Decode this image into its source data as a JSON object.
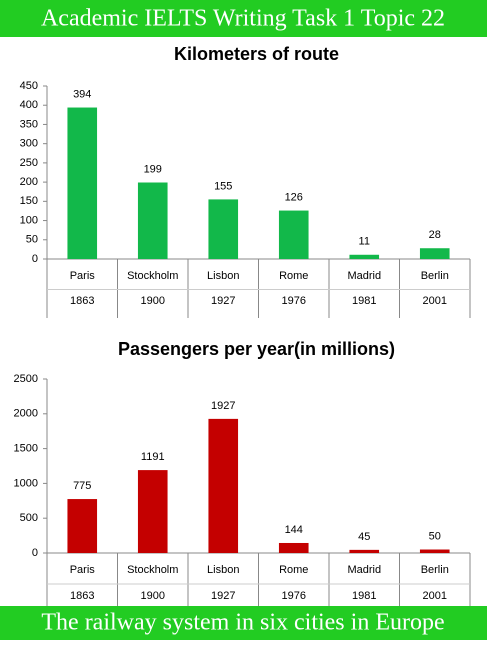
{
  "header": {
    "title": "Academic IELTS Writing Task 1 Topic 22"
  },
  "footer": {
    "title": "The railway system in six cities in Europe"
  },
  "chart_data": [
    {
      "type": "bar",
      "title": "Kilometers of route",
      "categories": [
        "Paris",
        "Stockholm",
        "Lisbon",
        "Rome",
        "Madrid",
        "Berlin"
      ],
      "years": [
        "1863",
        "1900",
        "1927",
        "1976",
        "1981",
        "2001"
      ],
      "values": [
        394,
        199,
        155,
        126,
        11,
        28
      ],
      "color": "#12b84a",
      "ylim": [
        0,
        450
      ],
      "yticks": [
        0,
        50,
        100,
        150,
        200,
        250,
        300,
        350,
        400,
        450
      ],
      "grid": false
    },
    {
      "type": "bar",
      "title": "Passengers per year(in millions)",
      "categories": [
        "Paris",
        "Stockholm",
        "Lisbon",
        "Rome",
        "Madrid",
        "Berlin"
      ],
      "years": [
        "1863",
        "1900",
        "1927",
        "1976",
        "1981",
        "2001"
      ],
      "values": [
        775,
        1191,
        1927,
        144,
        45,
        50
      ],
      "color": "#c40000",
      "ylim": [
        0,
        2500
      ],
      "yticks": [
        0,
        500,
        1000,
        1500,
        2000,
        2500
      ],
      "grid": false
    }
  ]
}
